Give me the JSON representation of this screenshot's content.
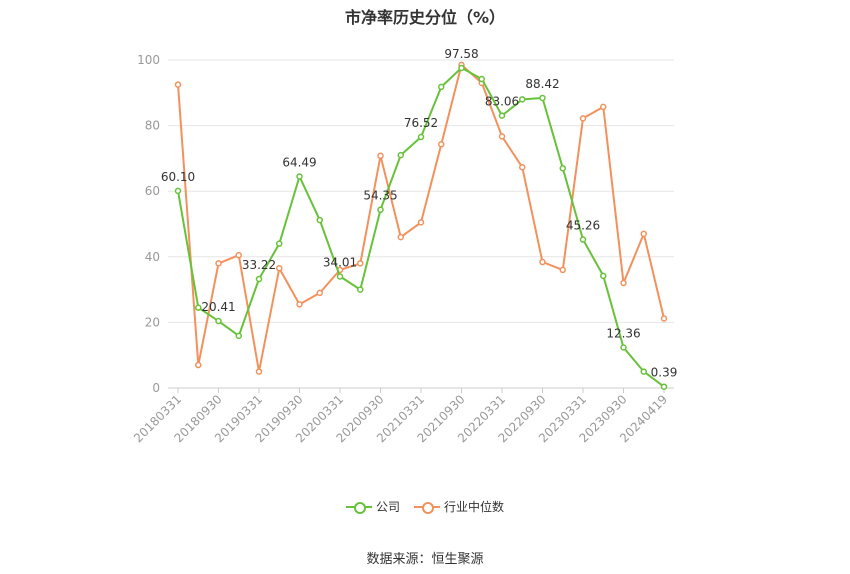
{
  "chart_data": {
    "type": "line",
    "title": "市净率历史分位（%）",
    "xlabel": "",
    "ylabel": "",
    "ylim": [
      0,
      100
    ],
    "yticks": [
      0,
      20,
      40,
      60,
      80,
      100
    ],
    "xtick_labels": [
      "20180331",
      "20180930",
      "20190331",
      "20190930",
      "20200331",
      "20200930",
      "20210331",
      "20210930",
      "20220331",
      "20220930",
      "20230331",
      "20230930",
      "20240419"
    ],
    "xtick_positions": [
      0,
      2,
      4,
      6,
      8,
      10,
      12,
      14,
      16,
      18,
      20,
      22,
      24
    ],
    "grid": true,
    "legend_position": "bottom",
    "series": [
      {
        "name": "公司",
        "color": "#67c23a",
        "values": [
          60.1,
          24.5,
          20.41,
          15.9,
          33.22,
          44.0,
          64.49,
          51.2,
          34.01,
          30.0,
          54.35,
          71.0,
          76.52,
          91.8,
          97.58,
          94.2,
          83.06,
          88.0,
          88.42,
          67.0,
          45.26,
          34.2,
          12.36,
          5.0,
          0.39
        ],
        "labels": {
          "0": "60.10",
          "2": "20.41",
          "4": "33.22",
          "6": "64.49",
          "8": "34.01",
          "10": "54.35",
          "12": "76.52",
          "14": "97.58",
          "16": "83.06",
          "18": "88.42",
          "20": "45.26",
          "22": "12.36",
          "24": "0.39"
        }
      },
      {
        "name": "行业中位数",
        "color": "#f3915d",
        "values": [
          92.5,
          7.0,
          38.0,
          40.5,
          5.0,
          36.5,
          25.5,
          29.0,
          36.0,
          38.0,
          70.8,
          46.0,
          50.5,
          74.3,
          98.5,
          93.0,
          76.7,
          67.3,
          38.4,
          36.0,
          82.2,
          85.7,
          32.0,
          47.0,
          21.2
        ],
        "labels": {}
      }
    ]
  },
  "legend": {
    "company": "公司",
    "industry": "行业中位数"
  },
  "source": "数据来源：恒生聚源"
}
